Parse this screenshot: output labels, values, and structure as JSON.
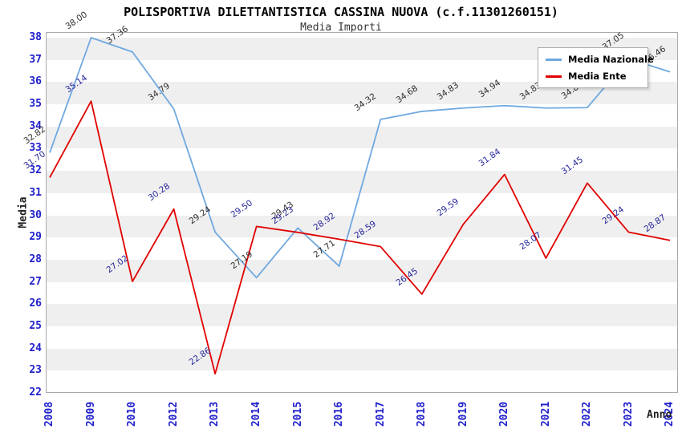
{
  "chart_data": {
    "type": "line",
    "title": "POLISPORTIVA DILETTANTISTICA CASSINA NUOVA (c.f.11301260151)",
    "subtitle": "Media Importi",
    "xlabel": "Anno",
    "ylabel": "Media",
    "ylim": [
      22,
      38
    ],
    "y_ticks": [
      22,
      23,
      24,
      25,
      26,
      27,
      28,
      29,
      30,
      31,
      32,
      33,
      34,
      35,
      36,
      37,
      38
    ],
    "grid_bands": "alternating horizontal 1-unit bands",
    "legend_position": "top-right",
    "categories": [
      "2008",
      "2009",
      "2010",
      "2012",
      "2013",
      "2014",
      "2015",
      "2016",
      "2017",
      "2018",
      "2019",
      "2020",
      "2021",
      "2022",
      "2023",
      "2024"
    ],
    "series": [
      {
        "name": "Media Nazionale",
        "color": "#6FA8E0",
        "label_color": "#2E2E2E",
        "values": [
          32.82,
          38.0,
          37.36,
          34.79,
          29.24,
          27.19,
          29.43,
          27.71,
          34.32,
          34.68,
          34.83,
          34.94,
          34.83,
          34.85,
          37.05,
          36.46
        ]
      },
      {
        "name": "Media Ente",
        "color": "#E00000",
        "label_color": "#28289B",
        "values": [
          31.7,
          35.14,
          27.02,
          30.28,
          22.86,
          29.5,
          29.23,
          28.92,
          28.59,
          26.45,
          29.59,
          31.84,
          28.07,
          31.45,
          29.24,
          28.87
        ]
      }
    ],
    "colors": {
      "tick_label": "#2020CC",
      "band": "#EFEFEF",
      "axis_border": "#AAAAAA",
      "title": "#000000",
      "subtitle": "#333333",
      "axis_title": "#222222"
    }
  }
}
